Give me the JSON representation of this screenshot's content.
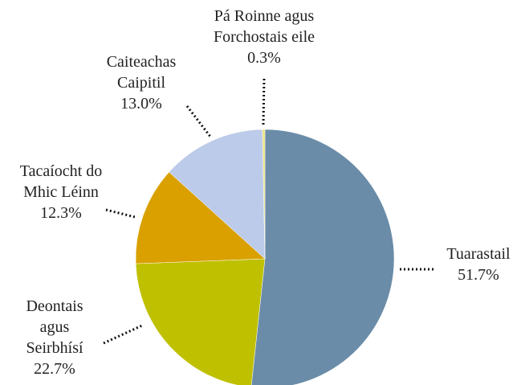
{
  "chart_data": {
    "type": "pie",
    "categories": [
      "Tuarastail",
      "Deontais agus Seirbhísí",
      "Tacaíocht do Mhic Léinn",
      "Caiteachas Caipitil",
      "Pá Roinne agus Forchostais eile"
    ],
    "values": [
      51.7,
      22.7,
      12.3,
      13.0,
      0.3
    ],
    "value_labels": [
      "51.7%",
      "22.7%",
      "12.3%",
      "13.0%",
      "0.3%"
    ],
    "colors": [
      "#6a8ca8",
      "#bfc000",
      "#d9a000",
      "#bccbe9",
      "#ece27a"
    ]
  }
}
